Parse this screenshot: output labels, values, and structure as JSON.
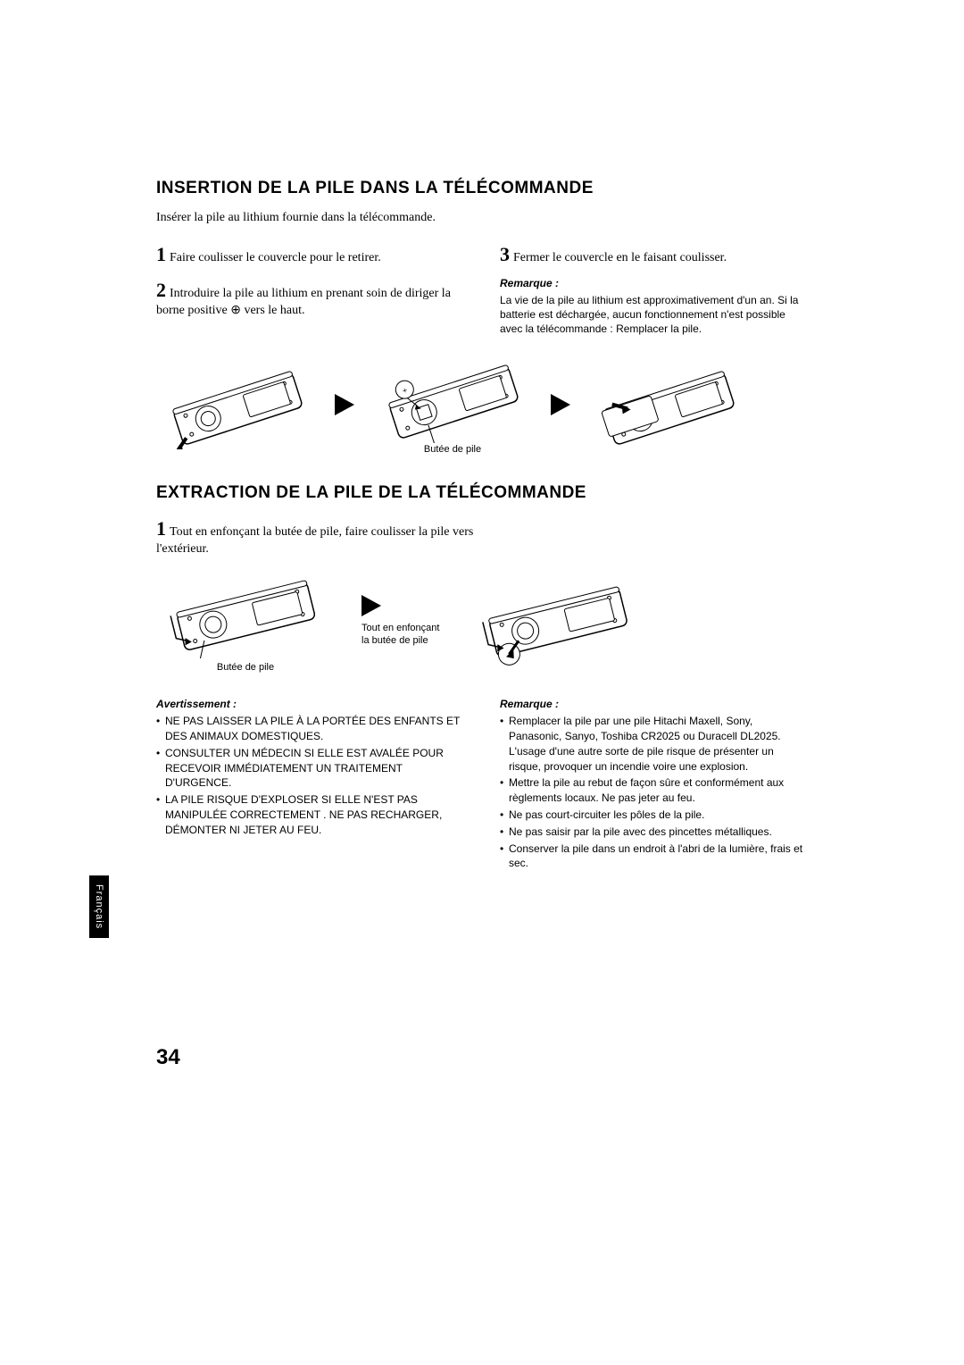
{
  "section1": {
    "title": "INSERTION DE LA PILE DANS LA TÉLÉCOMMANDE",
    "intro": "Insérer la pile au lithium fournie dans la télécommande.",
    "step1_num": "1",
    "step1_text": "Faire coulisser le couvercle pour le retirer.",
    "step2_num": "2",
    "step2_text": "Introduire la pile au lithium en prenant soin de diriger la borne positive ⊕ vers le haut.",
    "step3_num": "3",
    "step3_text": "Fermer le couvercle en le faisant coulisser.",
    "note_heading": "Remarque :",
    "note_body": "La vie de la pile au lithium est approximativement d'un an. Si la batterie est déchargée, aucun fonctionnement n'est possible avec la télécommande : Remplacer la pile.",
    "diagram_caption": "Butée de pile"
  },
  "section2": {
    "title": "EXTRACTION DE LA PILE DE LA TÉLÉCOMMANDE",
    "step1_num": "1",
    "step1_text": "Tout en enfonçant la butée de pile, faire coulisser la pile vers l'extérieur.",
    "caption1": "Butée de pile",
    "caption2": "Tout en enfonçant la butée de pile",
    "warn_heading": "Avertissement :",
    "warn_items": [
      "NE PAS LAISSER LA PILE À LA PORTÉE DES ENFANTS ET DES ANIMAUX DOMESTIQUES.",
      "CONSULTER UN MÉDECIN SI ELLE EST AVALÉE POUR RECEVOIR IMMÉDIATEMENT UN TRAITEMENT D'URGENCE.",
      "LA PILE RISQUE D'EXPLOSER SI ELLE N'EST PAS MANIPULÉE CORRECTEMENT . NE PAS RECHARGER, DÉMONTER NI JETER AU FEU."
    ],
    "note_heading": "Remarque :",
    "note_items": [
      "Remplacer la pile par une pile Hitachi Maxell, Sony, Panasonic, Sanyo, Toshiba CR2025 ou Duracell DL2025. L'usage d'une autre sorte de pile risque de présenter un risque, provoquer un incendie voire une explosion.",
      "Mettre la pile au rebut de façon sûre et conformément aux règlements locaux. Ne pas jeter au feu.",
      "Ne pas court-circuiter les pôles de la pile.",
      "Ne pas saisir par la pile avec des pincettes métalliques.",
      "Conserver la pile dans un endroit à l'abri de la lumière, frais et sec."
    ]
  },
  "lang_tab": "Français",
  "page_number": "34",
  "colors": {
    "text": "#000000",
    "bg": "#ffffff",
    "tab_bg": "#000000",
    "tab_text": "#ffffff"
  }
}
